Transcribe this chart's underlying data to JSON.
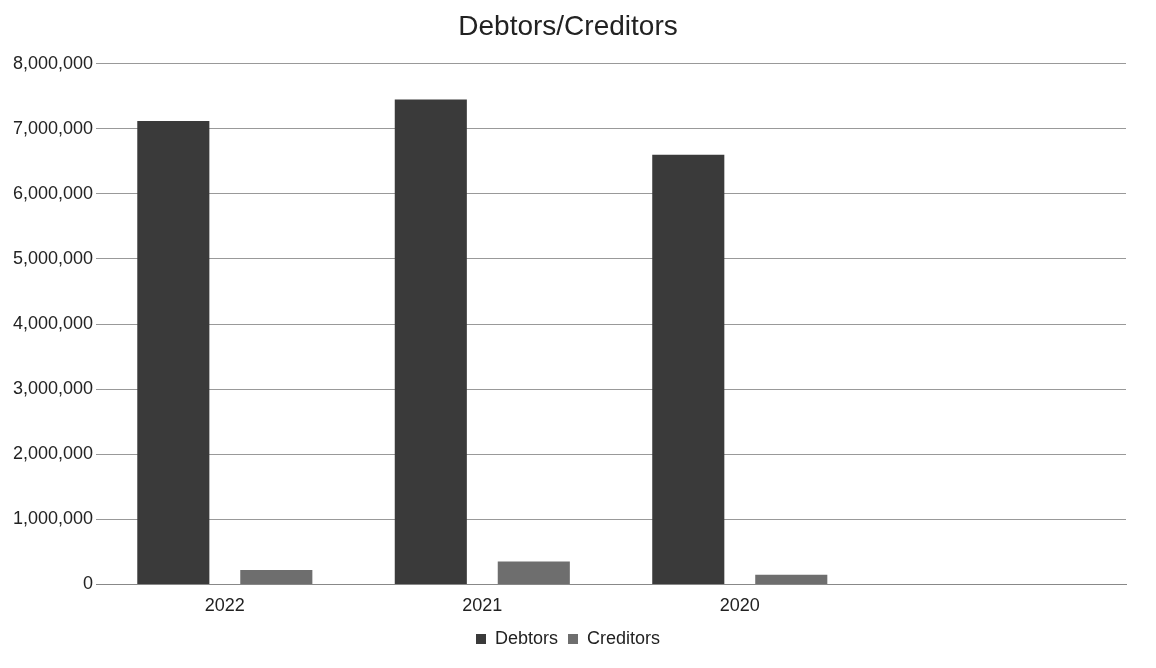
{
  "chart_data": {
    "type": "bar",
    "title": "Debtors/Creditors",
    "categories": [
      "2022",
      "2021",
      "2020",
      null
    ],
    "series": [
      {
        "name": "Debtors",
        "color": "#3a3a3a",
        "values": [
          7120000,
          7450000,
          6600000,
          null
        ]
      },
      {
        "name": "Creditors",
        "color": "#6e6e6e",
        "values": [
          220000,
          350000,
          150000,
          null
        ]
      }
    ],
    "ylim": [
      0,
      8000000
    ],
    "yticks": [
      {
        "value": 0,
        "label": "0"
      },
      {
        "value": 1000000,
        "label": "1,000,000"
      },
      {
        "value": 2000000,
        "label": "2,000,000"
      },
      {
        "value": 3000000,
        "label": "3,000,000"
      },
      {
        "value": 4000000,
        "label": "4,000,000"
      },
      {
        "value": 5000000,
        "label": "5,000,000"
      },
      {
        "value": 6000000,
        "label": "6,000,000"
      },
      {
        "value": 7000000,
        "label": "7,000,000"
      },
      {
        "value": 8000000,
        "label": "8,000,000"
      }
    ],
    "grid": "y",
    "legend": "bottom"
  }
}
